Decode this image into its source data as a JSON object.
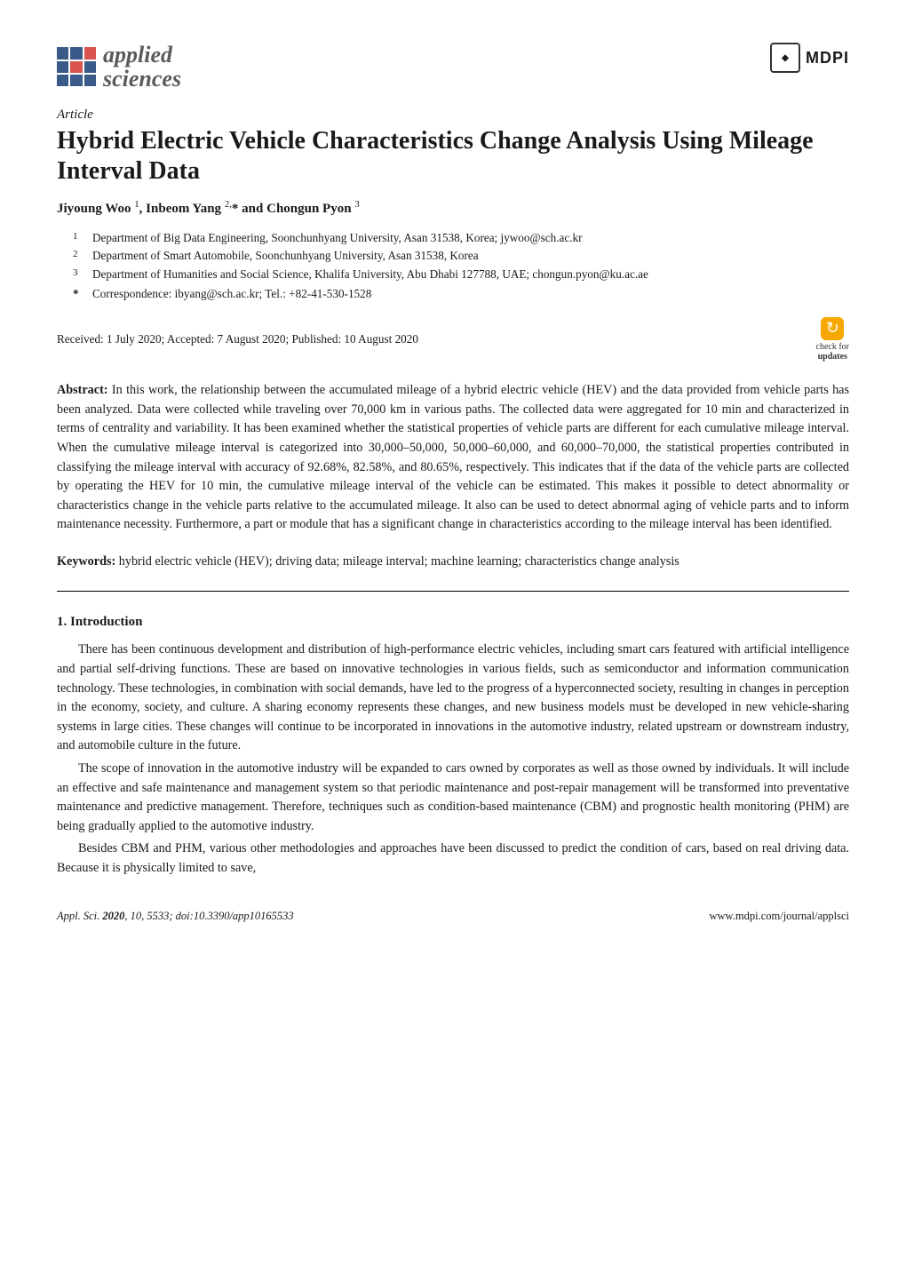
{
  "journal": {
    "name_line1": "applied",
    "name_line2": "sciences",
    "publisher": "MDPI"
  },
  "article": {
    "type": "Article",
    "title": "Hybrid Electric Vehicle Characteristics Change Analysis Using Mileage Interval Data",
    "authors_html": "Jiyoung Woo <sup>1</sup>, Inbeom Yang <sup>2,</sup>* and Chongun Pyon <sup>3</sup>",
    "affiliations": [
      {
        "num": "1",
        "text": "Department of Big Data Engineering, Soonchunhyang University, Asan 31538, Korea; jywoo@sch.ac.kr"
      },
      {
        "num": "2",
        "text": "Department of Smart Automobile, Soonchunhyang University, Asan 31538, Korea"
      },
      {
        "num": "3",
        "text": "Department of Humanities and Social Science, Khalifa University, Abu Dhabi 127788, UAE; chongun.pyon@ku.ac.ae"
      }
    ],
    "correspondence": "Correspondence: ibyang@sch.ac.kr; Tel.: +82-41-530-1528",
    "dates": "Received: 1 July 2020; Accepted: 7 August 2020; Published: 10 August 2020",
    "check_line1": "check for",
    "check_line2": "updates",
    "abstract_label": "Abstract:",
    "abstract": "In this work, the relationship between the accumulated mileage of a hybrid electric vehicle (HEV) and the data provided from vehicle parts has been analyzed. Data were collected while traveling over 70,000 km in various paths. The collected data were aggregated for 10 min and characterized in terms of centrality and variability. It has been examined whether the statistical properties of vehicle parts are different for each cumulative mileage interval. When the cumulative mileage interval is categorized into 30,000–50,000, 50,000–60,000, and 60,000–70,000, the statistical properties contributed in classifying the mileage interval with accuracy of 92.68%, 82.58%, and 80.65%, respectively. This indicates that if the data of the vehicle parts are collected by operating the HEV for 10 min, the cumulative mileage interval of the vehicle can be estimated. This makes it possible to detect abnormality or characteristics change in the vehicle parts relative to the accumulated mileage. It also can be used to detect abnormal aging of vehicle parts and to inform maintenance necessity. Furthermore, a part or module that has a significant change in characteristics according to the mileage interval has been identified.",
    "keywords_label": "Keywords:",
    "keywords": "hybrid electric vehicle (HEV); driving data; mileage interval; machine learning; characteristics change analysis"
  },
  "sections": {
    "s1_heading": "1. Introduction",
    "p1": "There has been continuous development and distribution of high-performance electric vehicles, including smart cars featured with artificial intelligence and partial self-driving functions. These are based on innovative technologies in various fields, such as semiconductor and information communication technology. These technologies, in combination with social demands, have led to the progress of a hyperconnected society, resulting in changes in perception in the economy, society, and culture. A sharing economy represents these changes, and new business models must be developed in new vehicle-sharing systems in large cities. These changes will continue to be incorporated in innovations in the automotive industry, related upstream or downstream industry, and automobile culture in the future.",
    "p2": "The scope of innovation in the automotive industry will be expanded to cars owned by corporates as well as those owned by individuals. It will include an effective and safe maintenance and management system so that periodic maintenance and post-repair management will be transformed into preventative maintenance and predictive management. Therefore, techniques such as condition-based maintenance (CBM) and prognostic health monitoring (PHM) are being gradually applied to the automotive industry.",
    "p3": "Besides CBM and PHM, various other methodologies and approaches have been discussed to predict the condition of cars, based on real driving data. Because it is physically limited to save,"
  },
  "footer": {
    "left_html": "Appl. Sci. <b>2020</b>, <i>10</i>, 5533; doi:10.3390/app10165533",
    "right": "www.mdpi.com/journal/applsci"
  },
  "colors": {
    "logo_blue": "#3a5a8a",
    "logo_red": "#d9534f",
    "check_orange": "#f7a800",
    "text": "#1a1a1a"
  }
}
